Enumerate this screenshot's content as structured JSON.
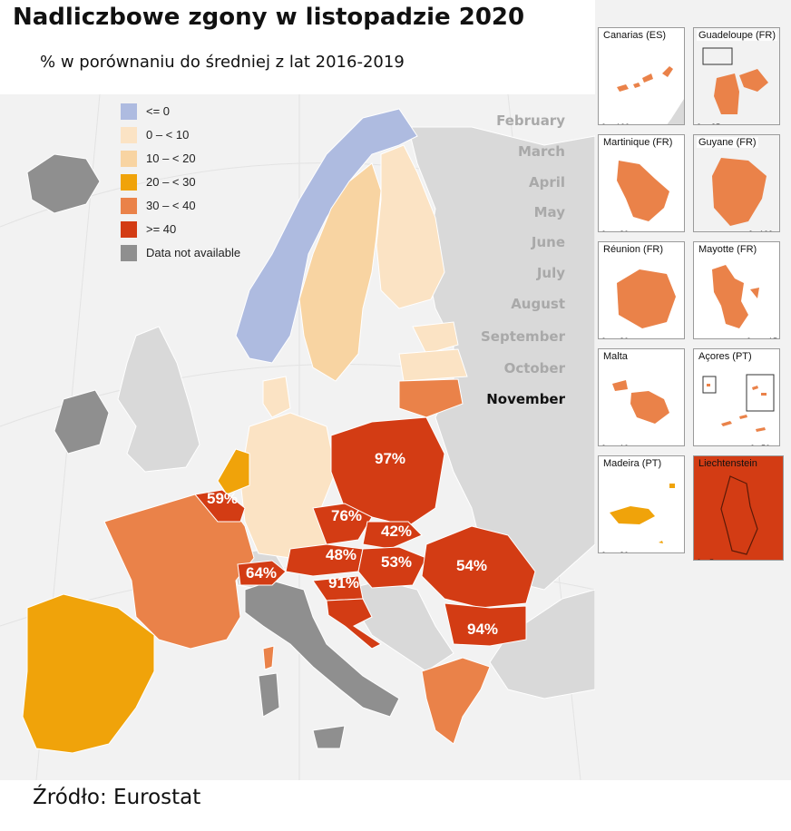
{
  "title": "Nadliczbowe zgony w listopadzie 2020",
  "subtitle": "% w porównaniu do średniej z lat 2016-2019",
  "source": "Źródło: Eurostat",
  "legend": [
    {
      "label": "<= 0",
      "color": "#aebbe0"
    },
    {
      "label": "0 – < 10",
      "color": "#fbe3c4"
    },
    {
      "label": "10 – < 20",
      "color": "#f8d4a2"
    },
    {
      "label": "20 – < 30",
      "color": "#f0a30a"
    },
    {
      "label": "30 – < 40",
      "color": "#ea8249"
    },
    {
      "label": ">= 40",
      "color": "#d33c14"
    },
    {
      "label": "Data not available",
      "color": "#8f8f8f"
    }
  ],
  "months": [
    "February",
    "March",
    "April",
    "May",
    "June",
    "July",
    "August",
    "September",
    "October",
    "November"
  ],
  "active_month": "November",
  "percent_labels": [
    "97%",
    "59%",
    "76%",
    "42%",
    "48%",
    "53%",
    "54%",
    "64%",
    "91%",
    "94%"
  ],
  "insets": [
    {
      "name": "Canarias (ES)",
      "scale": [
        "0",
        "100"
      ]
    },
    {
      "name": "Guadeloupe (FR)",
      "scale": [
        "0",
        "25"
      ]
    },
    {
      "name": "Martinique (FR)",
      "scale": [
        "0",
        "20"
      ]
    },
    {
      "name": "Guyane (FR)",
      "scale": [
        "0",
        "100"
      ]
    },
    {
      "name": "Réunion (FR)",
      "scale": [
        "0",
        "20"
      ]
    },
    {
      "name": "Mayotte (FR)",
      "scale": [
        "0",
        "15"
      ]
    },
    {
      "name": "Malta",
      "scale": [
        "0",
        "10"
      ]
    },
    {
      "name": "Açores (PT)",
      "scale": [
        "0",
        "50"
      ]
    },
    {
      "name": "Madeira (PT)",
      "scale": [
        "0",
        "20"
      ]
    },
    {
      "name": "Liechtenstein",
      "scale": [
        "0",
        "5"
      ]
    }
  ]
}
